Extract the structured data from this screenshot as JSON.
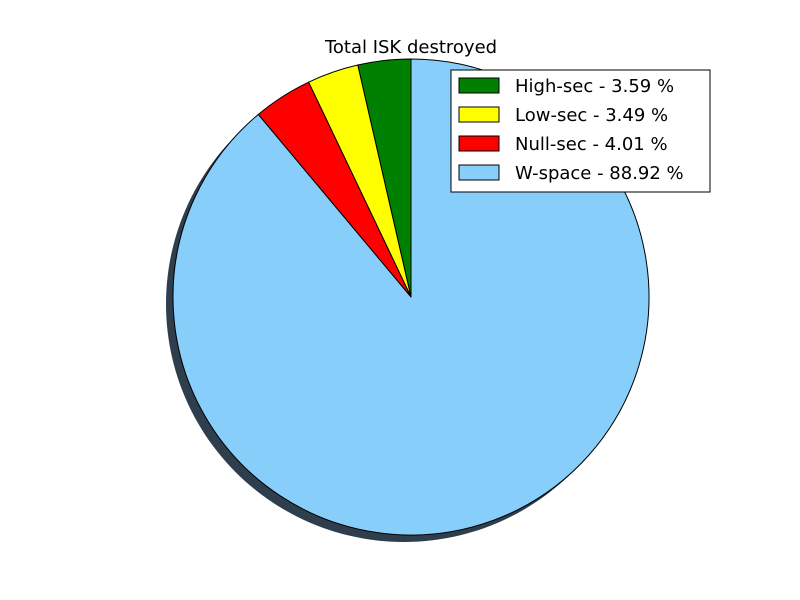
{
  "chart_data": {
    "type": "pie",
    "title": "Total ISK destroyed",
    "shadow": true,
    "start_angle_deg": 90,
    "direction": "counterclockwise",
    "legend_position": "top-right",
    "slices": [
      {
        "label": "High-sec - 3.59 %",
        "value": 3.59,
        "color": "#008000"
      },
      {
        "label": "Low-sec - 3.49 %",
        "value": 3.49,
        "color": "#ffff00"
      },
      {
        "label": "Null-sec - 4.01 %",
        "value": 4.01,
        "color": "#ff0000"
      },
      {
        "label": "W-space - 88.92 %",
        "value": 88.92,
        "color": "#87cefa"
      }
    ]
  }
}
